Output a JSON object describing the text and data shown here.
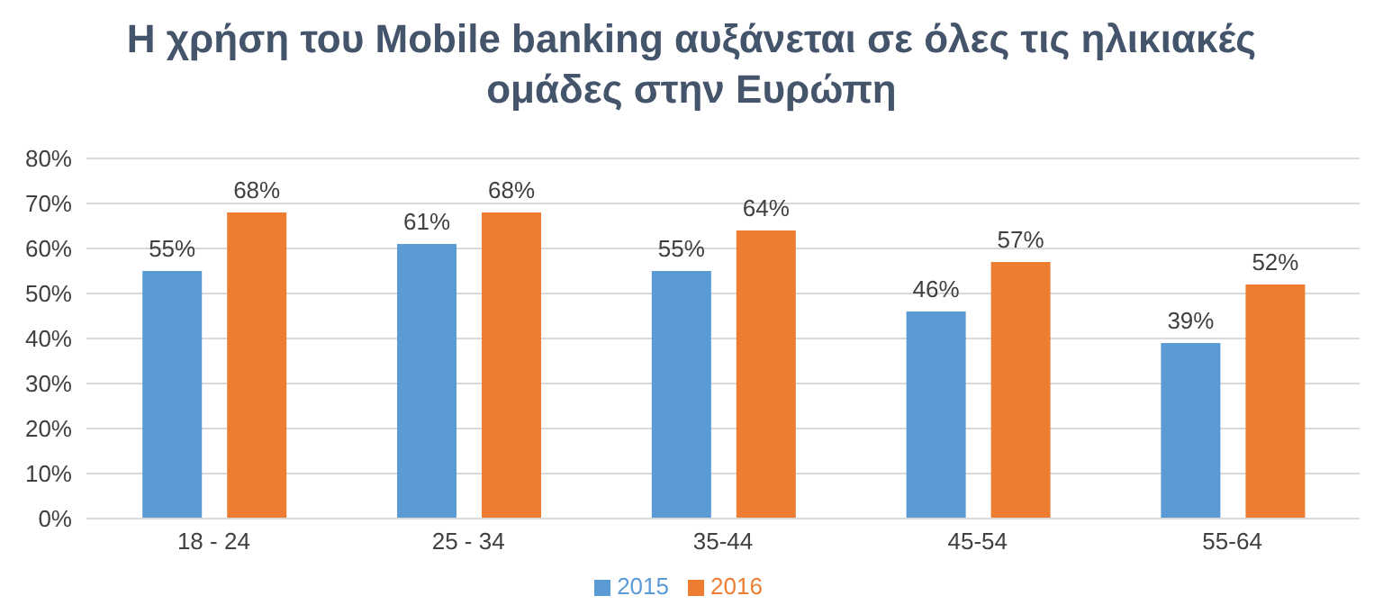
{
  "chart_data": {
    "type": "bar",
    "title": "Η χρήση του Mobile banking αυξάνεται σε όλες τις ηλικιακές ομάδες στην Ευρώπη",
    "categories": [
      "18 - 24",
      "25 - 34",
      "35-44",
      "45-54",
      "55-64"
    ],
    "series": [
      {
        "name": "2015",
        "color": "#5b9bd5",
        "values": [
          55,
          61,
          55,
          46,
          39
        ],
        "value_labels": [
          "55%",
          "61%",
          "55%",
          "46%",
          "39%"
        ]
      },
      {
        "name": "2016",
        "color": "#ed7d31",
        "values": [
          68,
          68,
          64,
          57,
          52
        ],
        "value_labels": [
          "68%",
          "68%",
          "64%",
          "57%",
          "52%"
        ]
      }
    ],
    "ylim": [
      0,
      80
    ],
    "yticks": [
      {
        "value": 0,
        "label": "0%"
      },
      {
        "value": 10,
        "label": "10%"
      },
      {
        "value": 20,
        "label": "20%"
      },
      {
        "value": 30,
        "label": "30%"
      },
      {
        "value": 40,
        "label": "40%"
      },
      {
        "value": 50,
        "label": "50%"
      },
      {
        "value": 60,
        "label": "60%"
      },
      {
        "value": 70,
        "label": "70%"
      },
      {
        "value": 80,
        "label": "80%"
      }
    ],
    "grid": "y",
    "legend": "bottom"
  }
}
